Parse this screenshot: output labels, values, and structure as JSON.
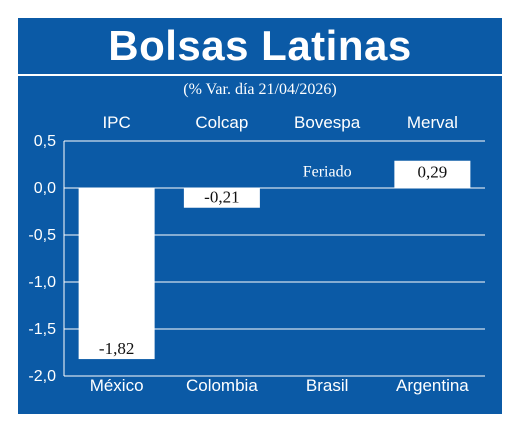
{
  "header": {
    "title": "Bolsas Latinas",
    "subtitle": "(% Var. día 21/04/2026)"
  },
  "colors": {
    "background": "#0b5aa6",
    "bars": "#ffffff",
    "text": "#ffffff",
    "value_label_text": "#111111"
  },
  "chart_data": {
    "type": "bar",
    "title": "Bolsas Latinas",
    "subtitle": "(% Var. día 21/04/2026)",
    "index_names": [
      "IPC",
      "Colcap",
      "Bovespa",
      "Merval"
    ],
    "categories": [
      "México",
      "Colombia",
      "Brasil",
      "Argentina"
    ],
    "values": [
      -1.82,
      -0.21,
      null,
      0.29
    ],
    "value_labels": [
      "-1,82",
      "-0,21",
      "Feriado",
      "0,29"
    ],
    "ylim": [
      -2.0,
      0.5
    ],
    "yticks": [
      0.5,
      0.0,
      -0.5,
      -1.0,
      -1.5,
      -2.0
    ],
    "ytick_labels": [
      "0,5",
      "0,0",
      "-0,5",
      "-1,0",
      "-1,5",
      "-2,0"
    ],
    "grid": true
  }
}
